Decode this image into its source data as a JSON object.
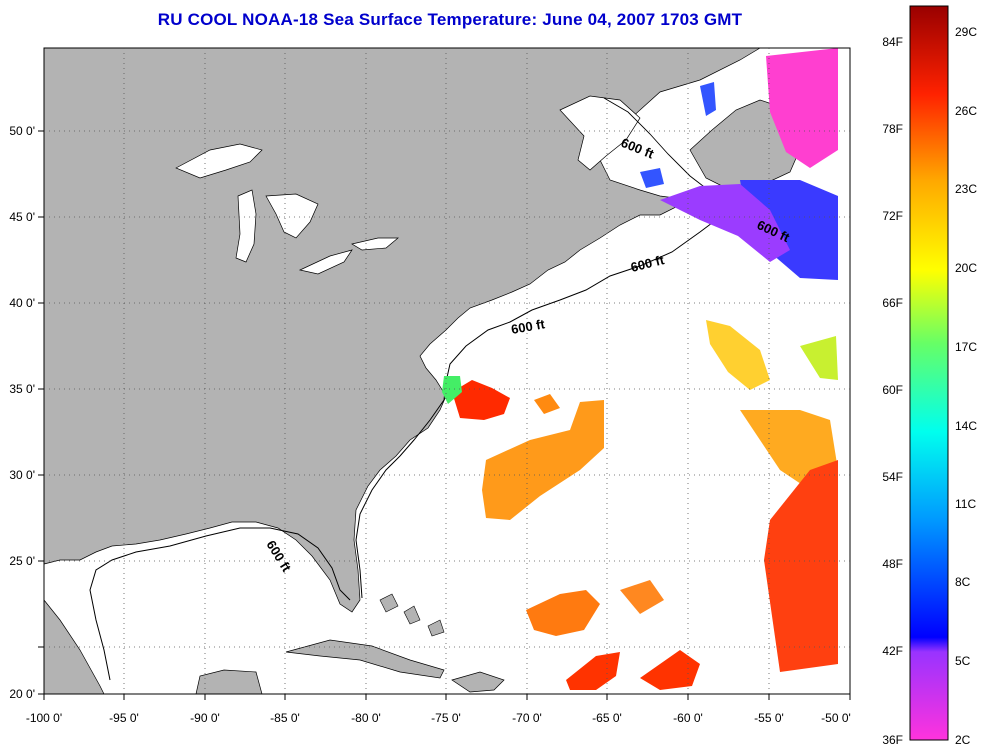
{
  "title": "RU COOL  NOAA-18  Sea Surface Temperature:  June 04, 2007 1703 GMT",
  "colors": {
    "land": "#b3b3b3",
    "water": "#ffffff",
    "title": "#0000cc"
  },
  "axes": {
    "x_ticks": [
      "-100 0'",
      "-95 0'",
      "-90 0'",
      "-85 0'",
      "-80 0'",
      "-75 0'",
      "-70 0'",
      "-65 0'",
      "-60 0'",
      "-55 0'",
      "-50 0'"
    ],
    "y_ticks": [
      "50 0'",
      "45 0'",
      "40 0'",
      "35 0'",
      "30 0'",
      "25 0'",
      "20 0'"
    ]
  },
  "isobath_labels": [
    "600 ft",
    "600 ft",
    "600 ft",
    "600 ft",
    "600 ft"
  ],
  "colorbar": {
    "fahrenheit": [
      "84F",
      "78F",
      "72F",
      "66F",
      "60F",
      "54F",
      "48F",
      "42F",
      "36F"
    ],
    "celsius": [
      "29C",
      "26C",
      "23C",
      "20C",
      "17C",
      "14C",
      "11C",
      "8C",
      "5C",
      "2C"
    ]
  }
}
